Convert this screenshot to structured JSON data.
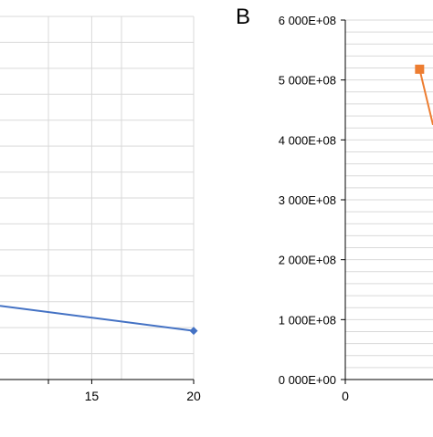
{
  "chart_data": [
    {
      "panel_label": "",
      "type": "line",
      "x_ticks": [
        "15",
        "20"
      ],
      "x_tick_values": [
        15,
        20
      ],
      "xlim": [
        10.5,
        20
      ],
      "ylim": [
        0,
        1
      ],
      "series": [
        {
          "color": "#4472c4",
          "marker": "diamond",
          "x": [
            10.5,
            20
          ],
          "y": [
            0.203,
            0.134
          ]
        }
      ],
      "grid": true
    },
    {
      "panel_label": "B",
      "type": "line",
      "x_ticks": [
        "0"
      ],
      "x_tick_values": [
        0
      ],
      "xlim": [
        0,
        3.6
      ],
      "y_ticks": [
        "0 000E+00",
        "1 000E+08",
        "2 000E+08",
        "3 000E+08",
        "4 000E+08",
        "5 000E+08",
        "6 000E+08"
      ],
      "y_tick_values": [
        0,
        100000000,
        200000000,
        300000000,
        400000000,
        500000000,
        600000000
      ],
      "ylim": [
        0,
        600000000
      ],
      "series": [
        {
          "color": "#ed7d31",
          "marker": "square",
          "x": [
            3.05,
            3.6
          ],
          "y": [
            518000000,
            425000000
          ]
        }
      ],
      "grid": true
    }
  ]
}
